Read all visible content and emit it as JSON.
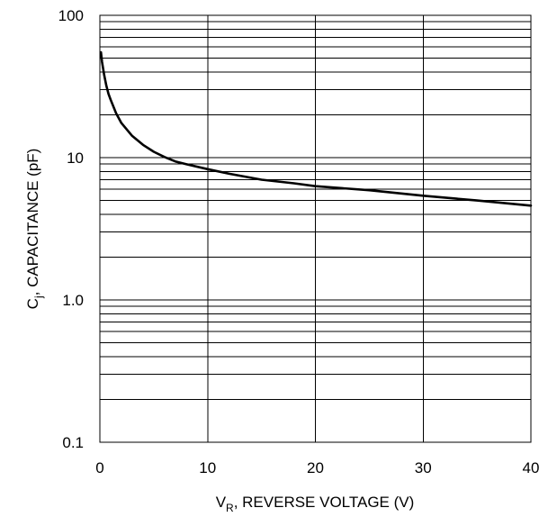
{
  "chart_data": {
    "type": "line",
    "xlabel": {
      "main": "V",
      "sub": "R",
      "rest": ", REVERSE VOLTAGE (V)"
    },
    "ylabel": {
      "main": "C",
      "sub": "j",
      "rest": ", CAPACITANCE (pF)"
    },
    "xlim": [
      0,
      40
    ],
    "ylim": [
      0.1,
      100
    ],
    "yscale": "log",
    "grid": true,
    "x_ticks": [
      0,
      10,
      20,
      30,
      40
    ],
    "x_tick_labels": [
      "0",
      "10",
      "20",
      "30",
      "40"
    ],
    "y_ticks": [
      0.1,
      1,
      10,
      100
    ],
    "y_tick_labels": [
      "0.1",
      "1.0",
      "10",
      "100"
    ],
    "series": [
      {
        "x": [
          0.1,
          0.2,
          0.4,
          0.6,
          0.8,
          1,
          1.5,
          2,
          3,
          4,
          5,
          6,
          7,
          8,
          10,
          12,
          15,
          18,
          20,
          25,
          30,
          35,
          40
        ],
        "y": [
          55,
          47,
          38,
          32,
          28,
          25.5,
          20.5,
          17.5,
          14.2,
          12.3,
          11,
          10.1,
          9.4,
          9,
          8.3,
          7.7,
          7,
          6.6,
          6.3,
          5.9,
          5.4,
          5,
          4.6
        ]
      }
    ]
  }
}
